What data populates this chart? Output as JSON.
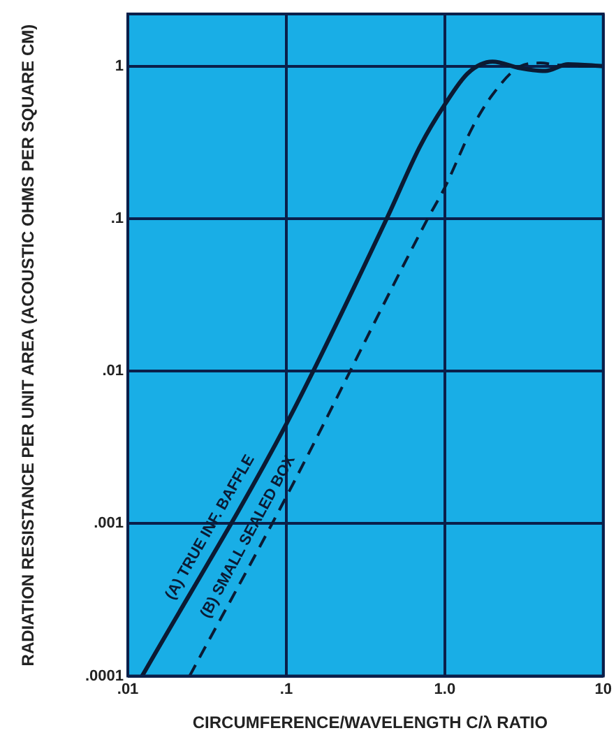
{
  "chart_data": {
    "type": "line",
    "xlabel": "CIRCUMFERENCE/WAVELENGTH C/λ RATIO",
    "ylabel": "RADIATION RESISTANCE PER UNIT AREA (ACOUSTIC OHMS PER SQUARE CM)",
    "log": "xy",
    "grid": true,
    "legend": false,
    "marker": "none",
    "xlim": [
      0.01,
      10
    ],
    "ylim": [
      0.0001,
      2.2
    ],
    "xticks": [
      {
        "value": 0.01,
        "label": ".01"
      },
      {
        "value": 0.1,
        "label": ".1"
      },
      {
        "value": 1,
        "label": "1.0"
      },
      10
    ],
    "yticks": [
      {
        "value": 0.0001,
        "label": ".0001"
      },
      {
        "value": 0.001,
        "label": ".001"
      },
      {
        "value": 0.01,
        "label": ".01"
      },
      {
        "value": 0.1,
        "label": ".1"
      },
      1
    ],
    "series": [
      {
        "name": "(A) TRUE INF. BAFFLE",
        "color": "#0b1a33",
        "line_style": "solid",
        "x": [
          0.0123,
          0.1,
          0.43,
          0.7,
          1,
          1.4,
          2,
          3,
          4.3,
          6,
          10
        ],
        "values": [
          0.0001,
          0.0045,
          0.1,
          0.3,
          0.56,
          0.9,
          1.07,
          0.97,
          0.93,
          1.03,
          1
        ]
      },
      {
        "name": "(B) SMALL SEALED BOX",
        "color": "#0b1a33",
        "line_style": "dashed",
        "x": [
          0.0245,
          0.1,
          0.78,
          1,
          1.5,
          2,
          3,
          4,
          5,
          7,
          10
        ],
        "values": [
          0.0001,
          0.0015,
          0.1,
          0.16,
          0.4,
          0.65,
          1,
          1.05,
          1.02,
          1,
          1
        ]
      }
    ]
  }
}
